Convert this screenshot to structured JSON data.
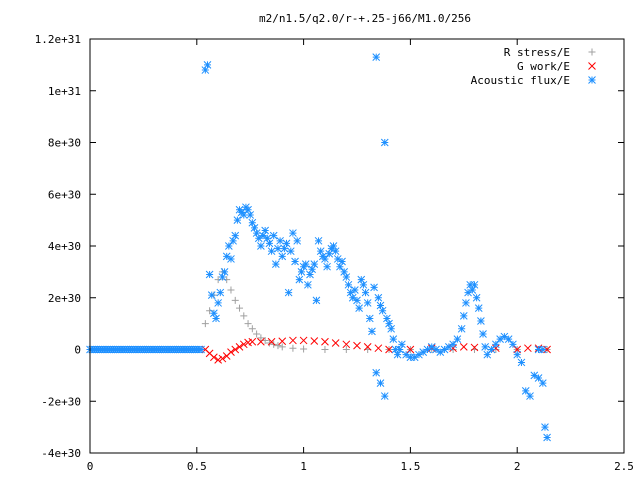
{
  "chart_data": {
    "type": "scatter",
    "title": "m2/n1.5/q2.0/r-+.25-j66/M1.0/256",
    "xlabel": "",
    "ylabel": "",
    "xlim": [
      0,
      2.5
    ],
    "ylim": [
      -4e+30,
      1.2e+31
    ],
    "grid": false,
    "legend_position": "top-right",
    "x_ticks": [
      {
        "value": 0,
        "label": "0"
      },
      {
        "value": 0.5,
        "label": "0.5"
      },
      {
        "value": 1,
        "label": "1"
      },
      {
        "value": 1.5,
        "label": "1.5"
      },
      {
        "value": 2,
        "label": "2"
      },
      {
        "value": 2.5,
        "label": "2.5"
      }
    ],
    "y_ticks": [
      {
        "value": -4e+30,
        "label": "-4e+30"
      },
      {
        "value": -2e+30,
        "label": "-2e+30"
      },
      {
        "value": 0,
        "label": "0"
      },
      {
        "value": 2e+30,
        "label": "2e+30"
      },
      {
        "value": 4e+30,
        "label": "4e+30"
      },
      {
        "value": 6e+30,
        "label": "6e+30"
      },
      {
        "value": 8e+30,
        "label": "8e+30"
      },
      {
        "value": 1e+31,
        "label": "1e+31"
      },
      {
        "value": 1.2e+31,
        "label": "1.2e+31"
      }
    ],
    "series": [
      {
        "name": "R stress/E",
        "marker": "plus",
        "color": "#a0a0a0",
        "points": [
          [
            0.54,
            1e+30
          ],
          [
            0.56,
            1.5e+30
          ],
          [
            0.58,
            2.1e+30
          ],
          [
            0.6,
            2.7e+30
          ],
          [
            0.62,
            3e+30
          ],
          [
            0.64,
            2.7e+30
          ],
          [
            0.66,
            2.3e+30
          ],
          [
            0.68,
            1.9e+30
          ],
          [
            0.7,
            1.6e+30
          ],
          [
            0.72,
            1.3e+30
          ],
          [
            0.74,
            1e+30
          ],
          [
            0.76,
            8e+29
          ],
          [
            0.78,
            6e+29
          ],
          [
            0.8,
            4.5e+29
          ],
          [
            0.82,
            3.5e+29
          ],
          [
            0.84,
            2.5e+29
          ],
          [
            0.86,
            2e+29
          ],
          [
            0.88,
            1.5e+29
          ],
          [
            0.9,
            1e+29
          ],
          [
            0.95,
            5e+28
          ],
          [
            1.0,
            2e+28
          ],
          [
            1.1,
            0.0
          ],
          [
            1.2,
            0.0
          ],
          [
            1.3,
            0.0
          ],
          [
            1.4,
            0.0
          ],
          [
            1.5,
            0.0
          ],
          [
            1.6,
            0.0
          ],
          [
            1.7,
            0.0
          ],
          [
            1.8,
            0.0
          ],
          [
            1.9,
            0.0
          ],
          [
            2.0,
            0.0
          ],
          [
            2.1,
            0.0
          ],
          [
            2.14,
            0.0
          ]
        ]
      },
      {
        "name": "G work/E",
        "marker": "cross",
        "color": "#ff0000",
        "points": [
          [
            0.54,
            0.0
          ],
          [
            0.56,
            -1.5e+29
          ],
          [
            0.58,
            -3e+29
          ],
          [
            0.6,
            -4e+29
          ],
          [
            0.62,
            -3.5e+29
          ],
          [
            0.64,
            -2.5e+29
          ],
          [
            0.66,
            -1e+29
          ],
          [
            0.68,
            0.0
          ],
          [
            0.7,
            1e+29
          ],
          [
            0.72,
            2e+29
          ],
          [
            0.74,
            2.7e+29
          ],
          [
            0.76,
            3e+29
          ],
          [
            0.8,
            3e+29
          ],
          [
            0.85,
            3e+29
          ],
          [
            0.9,
            3.2e+29
          ],
          [
            0.95,
            3.5e+29
          ],
          [
            1.0,
            3.5e+29
          ],
          [
            1.05,
            3.3e+29
          ],
          [
            1.1,
            3e+29
          ],
          [
            1.15,
            2.5e+29
          ],
          [
            1.2,
            2e+29
          ],
          [
            1.25,
            1.5e+29
          ],
          [
            1.3,
            1e+29
          ],
          [
            1.35,
            5e+28
          ],
          [
            1.4,
            0.0
          ],
          [
            1.5,
            0.0
          ],
          [
            1.6,
            5e+28
          ],
          [
            1.7,
            5e+28
          ],
          [
            1.75,
            1e+29
          ],
          [
            1.8,
            8e+28
          ],
          [
            1.9,
            5e+28
          ],
          [
            2.0,
            0.0
          ],
          [
            2.05,
            5e+28
          ],
          [
            2.1,
            5e+28
          ],
          [
            2.14,
            0.0
          ]
        ]
      },
      {
        "name": "Acoustic flux/E",
        "marker": "star",
        "color": "#1e90ff",
        "points": [
          [
            0.54,
            1.08e+31
          ],
          [
            0.55,
            1.1e+31
          ],
          [
            0.56,
            2.9e+30
          ],
          [
            0.57,
            2.1e+30
          ],
          [
            0.58,
            1.4e+30
          ],
          [
            0.59,
            1.2e+30
          ],
          [
            0.6,
            1.8e+30
          ],
          [
            0.61,
            2.2e+30
          ],
          [
            0.62,
            2.8e+30
          ],
          [
            0.63,
            3e+30
          ],
          [
            0.64,
            3.6e+30
          ],
          [
            0.65,
            4e+30
          ],
          [
            0.66,
            3.5e+30
          ],
          [
            0.67,
            4.2e+30
          ],
          [
            0.68,
            4.4e+30
          ],
          [
            0.69,
            5e+30
          ],
          [
            0.7,
            5.4e+30
          ],
          [
            0.71,
            5.3e+30
          ],
          [
            0.72,
            5.2e+30
          ],
          [
            0.73,
            5.5e+30
          ],
          [
            0.74,
            5.4e+30
          ],
          [
            0.75,
            5.2e+30
          ],
          [
            0.76,
            4.9e+30
          ],
          [
            0.77,
            4.7e+30
          ],
          [
            0.78,
            4.5e+30
          ],
          [
            0.79,
            4.3e+30
          ],
          [
            0.8,
            4e+30
          ],
          [
            0.81,
            4.4e+30
          ],
          [
            0.82,
            4.6e+30
          ],
          [
            0.83,
            4.3e+30
          ],
          [
            0.84,
            4.1e+30
          ],
          [
            0.85,
            3.8e+30
          ],
          [
            0.86,
            4.4e+30
          ],
          [
            0.87,
            3.3e+30
          ],
          [
            0.88,
            3.9e+30
          ],
          [
            0.89,
            4.2e+30
          ],
          [
            0.9,
            3.6e+30
          ],
          [
            0.91,
            3.9e+30
          ],
          [
            0.92,
            4.1e+30
          ],
          [
            0.93,
            2.2e+30
          ],
          [
            0.94,
            3.8e+30
          ],
          [
            0.95,
            4.5e+30
          ],
          [
            0.96,
            3.4e+30
          ],
          [
            0.97,
            4.2e+30
          ],
          [
            0.98,
            2.7e+30
          ],
          [
            0.99,
            3e+30
          ],
          [
            1.0,
            3.2e+30
          ],
          [
            1.01,
            3.3e+30
          ],
          [
            1.02,
            2.5e+30
          ],
          [
            1.03,
            2.9e+30
          ],
          [
            1.04,
            3.1e+30
          ],
          [
            1.05,
            3.3e+30
          ],
          [
            1.06,
            1.9e+30
          ],
          [
            1.07,
            4.2e+30
          ],
          [
            1.08,
            3.8e+30
          ],
          [
            1.09,
            3.6e+30
          ],
          [
            1.1,
            3.5e+30
          ],
          [
            1.11,
            3.2e+30
          ],
          [
            1.12,
            3.7e+30
          ],
          [
            1.13,
            3.9e+30
          ],
          [
            1.14,
            4e+30
          ],
          [
            1.15,
            3.8e+30
          ],
          [
            1.16,
            3.5e+30
          ],
          [
            1.17,
            3.2e+30
          ],
          [
            1.18,
            3.4e+30
          ],
          [
            1.19,
            3e+30
          ],
          [
            1.2,
            2.8e+30
          ],
          [
            1.21,
            2.5e+30
          ],
          [
            1.22,
            2.2e+30
          ],
          [
            1.23,
            2e+30
          ],
          [
            1.24,
            2.3e+30
          ],
          [
            1.25,
            1.9e+30
          ],
          [
            1.26,
            1.6e+30
          ],
          [
            1.27,
            2.7e+30
          ],
          [
            1.28,
            2.5e+30
          ],
          [
            1.29,
            2.2e+30
          ],
          [
            1.3,
            1.8e+30
          ],
          [
            1.31,
            1.2e+30
          ],
          [
            1.32,
            7e+29
          ],
          [
            1.33,
            2.4e+30
          ],
          [
            1.34,
            1.13e+31
          ],
          [
            1.35,
            2e+30
          ],
          [
            1.36,
            1.7e+30
          ],
          [
            1.37,
            1.5e+30
          ],
          [
            1.38,
            8e+30
          ],
          [
            1.39,
            1.2e+30
          ],
          [
            1.4,
            1e+30
          ],
          [
            1.41,
            8e+29
          ],
          [
            1.42,
            4e+29
          ],
          [
            1.43,
            0.0
          ],
          [
            1.44,
            -2e+29
          ],
          [
            1.45,
            0.0
          ],
          [
            1.34,
            -9e+29
          ],
          [
            1.36,
            -1.3e+30
          ],
          [
            1.38,
            -1.8e+30
          ],
          [
            1.46,
            2e+29
          ],
          [
            1.48,
            -2e+29
          ],
          [
            1.5,
            -3e+29
          ],
          [
            1.52,
            -3e+29
          ],
          [
            1.54,
            -2e+29
          ],
          [
            1.56,
            -1e+29
          ],
          [
            1.58,
            0.0
          ],
          [
            1.6,
            1e+29
          ],
          [
            1.62,
            0.0
          ],
          [
            1.64,
            -1e+29
          ],
          [
            1.66,
            0.0
          ],
          [
            1.68,
            1e+29
          ],
          [
            1.7,
            2e+29
          ],
          [
            1.72,
            4e+29
          ],
          [
            1.74,
            8e+29
          ],
          [
            1.75,
            1.3e+30
          ],
          [
            1.76,
            1.8e+30
          ],
          [
            1.77,
            2.2e+30
          ],
          [
            1.78,
            2.5e+30
          ],
          [
            1.79,
            2.3e+30
          ],
          [
            1.8,
            2.5e+30
          ],
          [
            1.81,
            2e+30
          ],
          [
            1.82,
            1.6e+30
          ],
          [
            1.83,
            1.1e+30
          ],
          [
            1.84,
            6e+29
          ],
          [
            1.85,
            1e+29
          ],
          [
            1.86,
            -2e+29
          ],
          [
            1.88,
            0.0
          ],
          [
            1.9,
            2e+29
          ],
          [
            1.92,
            4e+29
          ],
          [
            1.94,
            5e+29
          ],
          [
            1.96,
            4e+29
          ],
          [
            1.98,
            2e+29
          ],
          [
            2.0,
            -2e+29
          ],
          [
            2.02,
            -5e+29
          ],
          [
            2.04,
            -1.6e+30
          ],
          [
            2.06,
            -1.8e+30
          ],
          [
            2.08,
            -1e+30
          ],
          [
            2.1,
            -1.1e+30
          ],
          [
            2.12,
            -1.3e+30
          ],
          [
            2.13,
            -3e+30
          ],
          [
            2.14,
            -3.4e+30
          ],
          [
            2.12,
            0.0
          ],
          [
            2.1,
            0.0
          ]
        ],
        "baseline": {
          "x_start": 0.0,
          "x_end": 0.52,
          "y": 0
        }
      }
    ]
  }
}
